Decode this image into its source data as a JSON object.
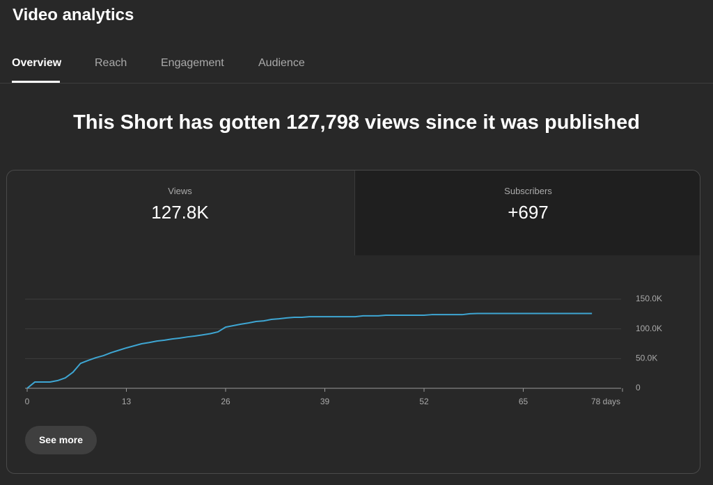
{
  "header": {
    "title": "Video analytics"
  },
  "tabs": [
    "Overview",
    "Reach",
    "Engagement",
    "Audience"
  ],
  "headline": "This Short has gotten 127,798 views since it was published",
  "metrics": [
    {
      "label": "Views",
      "value": "127.8K"
    },
    {
      "label": "Subscribers",
      "value": "+697"
    }
  ],
  "button": "See more",
  "chart_data": {
    "type": "line",
    "x": [
      0,
      1,
      2,
      3,
      4,
      5,
      6,
      7,
      8,
      9,
      10,
      11,
      12,
      13,
      14,
      15,
      16,
      17,
      18,
      19,
      20,
      21,
      22,
      23,
      24,
      25,
      26,
      27,
      28,
      29,
      30,
      31,
      32,
      33,
      34,
      35,
      36,
      37,
      38,
      39,
      40,
      41,
      42,
      43,
      44,
      45,
      46,
      47,
      48,
      49,
      50,
      51,
      52,
      53,
      54,
      55,
      56,
      57,
      58,
      59,
      60,
      61,
      62,
      63,
      64,
      65,
      66,
      67,
      68,
      69,
      70,
      71,
      72,
      73,
      74
    ],
    "series": [
      {
        "name": "Views",
        "color": "#3ea6d3",
        "values": [
          0,
          10500,
          10500,
          10500,
          13000,
          17500,
          27000,
          42000,
          47000,
          51500,
          55000,
          60000,
          64000,
          68000,
          71500,
          75000,
          77000,
          79500,
          81000,
          83000,
          84500,
          86500,
          88000,
          90000,
          92000,
          95000,
          103000,
          105500,
          108000,
          110000,
          112500,
          113500,
          116000,
          117000,
          118500,
          119500,
          119500,
          120500,
          120500,
          120500,
          120500,
          120500,
          120500,
          120500,
          122000,
          122000,
          122000,
          123000,
          123000,
          123000,
          123000,
          123000,
          123000,
          124000,
          124000,
          124000,
          124000,
          124000,
          125500,
          126000,
          126000,
          126000,
          126000,
          126000,
          126000,
          126000,
          126000,
          126000,
          126000,
          126000,
          126000,
          126000,
          126000,
          126000,
          126000
        ]
      }
    ],
    "xlim": [
      0,
      78
    ],
    "xticks": [
      0,
      13,
      26,
      39,
      52,
      65,
      {
        "value": 78,
        "label": "78 days"
      }
    ],
    "ylim": [
      0,
      150000
    ],
    "yticks": [
      0,
      {
        "value": 50000,
        "label": "50.0K"
      },
      {
        "value": 100000,
        "label": "100.0K"
      },
      {
        "value": 150000,
        "label": "150.0K"
      }
    ],
    "grid": true
  }
}
